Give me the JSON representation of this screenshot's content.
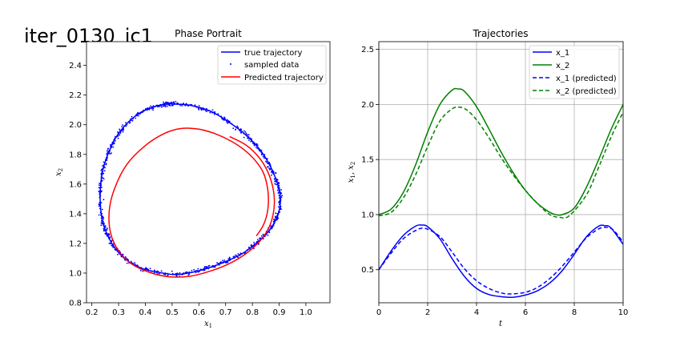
{
  "suptitle": "iter_0130_ic1",
  "chart_data": [
    {
      "type": "line",
      "title": "Phase Portrait",
      "xlabel": "x_1",
      "ylabel": "x_2",
      "xlim": [
        0.18,
        1.09
      ],
      "ylim": [
        0.8,
        2.56
      ],
      "xticks": [
        "0.2",
        "0.3",
        "0.4",
        "0.5",
        "0.6",
        "0.7",
        "0.8",
        "0.9",
        "1.0"
      ],
      "yticks": [
        "0.8",
        "1.0",
        "1.2",
        "1.4",
        "1.6",
        "1.8",
        "2.0",
        "2.2",
        "2.4"
      ],
      "grid": false,
      "legend_position": "top-right",
      "legend": [
        "true trajectory",
        "sampled data",
        "Predicted trajectory"
      ],
      "series": [
        {
          "name": "true trajectory",
          "color": "#0000ff",
          "style": "solid",
          "x": [
            0.5,
            0.57,
            0.645,
            0.71,
            0.77,
            0.82,
            0.855,
            0.88,
            0.898,
            0.905,
            0.9,
            0.885,
            0.86,
            0.82,
            0.77,
            0.71,
            0.645,
            0.575,
            0.51,
            0.45,
            0.39,
            0.335,
            0.29,
            0.26,
            0.24,
            0.232,
            0.232,
            0.242,
            0.262,
            0.292,
            0.332,
            0.38,
            0.43,
            0.48,
            0.5
          ],
          "y": [
            2.14,
            2.13,
            2.09,
            2.02,
            1.94,
            1.85,
            1.76,
            1.67,
            1.58,
            1.5,
            1.42,
            1.35,
            1.28,
            1.21,
            1.14,
            1.085,
            1.04,
            1.005,
            0.99,
            1.005,
            1.03,
            1.08,
            1.16,
            1.25,
            1.35,
            1.46,
            1.58,
            1.7,
            1.81,
            1.92,
            2.01,
            2.08,
            2.12,
            2.14,
            2.14
          ]
        },
        {
          "name": "Predicted trajectory",
          "color": "#ff0000",
          "style": "solid",
          "x": [
            0.715,
            0.77,
            0.815,
            0.85,
            0.872,
            0.882,
            0.878,
            0.86,
            0.825,
            0.775,
            0.715,
            0.645,
            0.57,
            0.49,
            0.415,
            0.35,
            0.3,
            0.27,
            0.265,
            0.285,
            0.33,
            0.4,
            0.47,
            0.535,
            0.6,
            0.66,
            0.72,
            0.77,
            0.81,
            0.84,
            0.855,
            0.86,
            0.855,
            0.84,
            0.815
          ],
          "y": [
            1.92,
            1.87,
            1.8,
            1.71,
            1.61,
            1.5,
            1.4,
            1.3,
            1.21,
            1.13,
            1.065,
            1.015,
            0.98,
            0.975,
            1.005,
            1.06,
            1.15,
            1.27,
            1.42,
            1.57,
            1.73,
            1.86,
            1.94,
            1.975,
            1.97,
            1.94,
            1.89,
            1.83,
            1.76,
            1.68,
            1.59,
            1.49,
            1.4,
            1.32,
            1.25
          ]
        }
      ],
      "scatter": {
        "name": "sampled data",
        "color": "#0000ff",
        "count": 900,
        "noise_x": 0.008,
        "noise_y": 0.015
      }
    },
    {
      "type": "line",
      "title": "Trajectories",
      "xlabel": "t",
      "ylabel": "x_1, x_2",
      "xlim": [
        0,
        10
      ],
      "ylim": [
        0.2,
        2.57
      ],
      "xticks": [
        "0",
        "2",
        "4",
        "6",
        "8",
        "10"
      ],
      "yticks": [
        "0.5",
        "1.0",
        "1.5",
        "2.0",
        "2.5"
      ],
      "grid": true,
      "legend_position": "top-right",
      "legend": [
        "x_1",
        "x_2",
        "x_1 (predicted)",
        "x_2 (predicted)"
      ],
      "series": [
        {
          "name": "x_1",
          "color": "#0000ff",
          "style": "solid",
          "t": [
            0,
            0.5,
            1,
            1.5,
            1.75,
            2,
            2.5,
            3,
            3.5,
            4,
            4.5,
            5,
            5.5,
            6,
            6.5,
            7,
            7.5,
            8,
            8.5,
            9,
            9.25,
            9.5,
            10
          ],
          "v": [
            0.5,
            0.67,
            0.81,
            0.895,
            0.905,
            0.89,
            0.78,
            0.6,
            0.44,
            0.33,
            0.275,
            0.255,
            0.25,
            0.27,
            0.31,
            0.38,
            0.49,
            0.64,
            0.8,
            0.895,
            0.9,
            0.88,
            0.73
          ]
        },
        {
          "name": "x_2",
          "color": "#008000",
          "style": "solid",
          "t": [
            0,
            0.5,
            1,
            1.5,
            2,
            2.5,
            3,
            3.25,
            3.5,
            4,
            4.5,
            5,
            5.5,
            6,
            6.5,
            7,
            7.25,
            7.5,
            8,
            8.5,
            9,
            9.5,
            10
          ],
          "v": [
            1.0,
            1.05,
            1.2,
            1.45,
            1.75,
            2.0,
            2.13,
            2.14,
            2.12,
            1.98,
            1.78,
            1.57,
            1.38,
            1.22,
            1.1,
            1.02,
            1.0,
            1.0,
            1.06,
            1.25,
            1.5,
            1.77,
            2.0
          ]
        },
        {
          "name": "x_1 (predicted)",
          "color": "#0000ff",
          "style": "dashed",
          "t": [
            0,
            0.5,
            1,
            1.5,
            1.9,
            2.5,
            3,
            3.5,
            4,
            4.5,
            5,
            5.4,
            6,
            6.5,
            7,
            7.5,
            8,
            8.5,
            9,
            9.3,
            9.6,
            10
          ],
          "v": [
            0.5,
            0.65,
            0.78,
            0.855,
            0.875,
            0.8,
            0.66,
            0.51,
            0.4,
            0.33,
            0.29,
            0.28,
            0.295,
            0.34,
            0.42,
            0.53,
            0.66,
            0.79,
            0.87,
            0.885,
            0.86,
            0.75
          ]
        },
        {
          "name": "x_2 (predicted)",
          "color": "#008000",
          "style": "dashed",
          "t": [
            0,
            0.5,
            1,
            1.5,
            2,
            2.5,
            3,
            3.3,
            3.6,
            4,
            4.5,
            5,
            5.5,
            6,
            6.5,
            7,
            7.4,
            7.8,
            8.5,
            9,
            9.5,
            10
          ],
          "v": [
            0.99,
            1.02,
            1.15,
            1.36,
            1.62,
            1.85,
            1.96,
            1.975,
            1.95,
            1.86,
            1.7,
            1.52,
            1.36,
            1.22,
            1.1,
            1.0,
            0.975,
            0.99,
            1.18,
            1.43,
            1.7,
            1.93
          ]
        }
      ]
    }
  ]
}
